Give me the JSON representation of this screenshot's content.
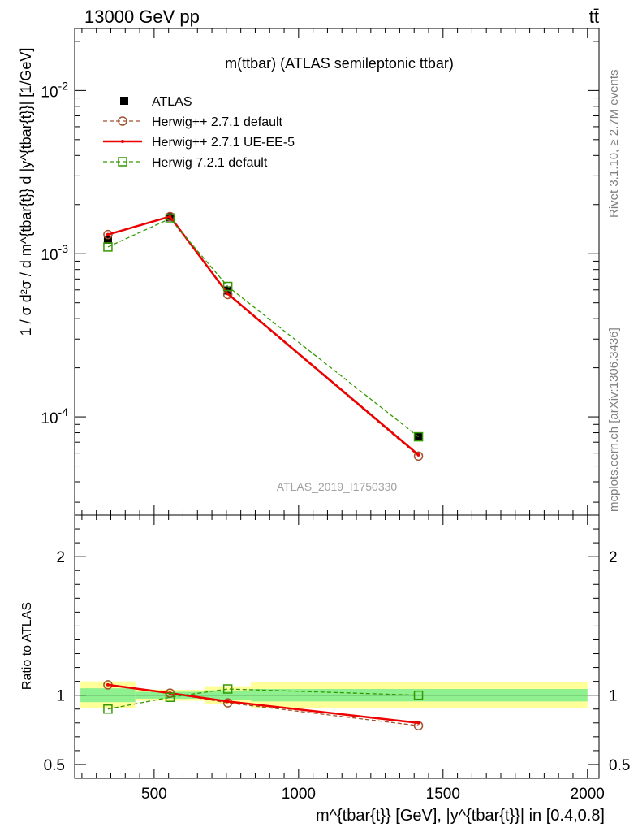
{
  "header": {
    "energy_label": "13000 GeV pp",
    "process_label": "tt̄"
  },
  "side_labels": {
    "rivet": "Rivet 3.1.10, ≥ 2.7M events",
    "mcplots": "mcplots.cern.ch [arXiv:1306.3436]"
  },
  "chart_data": [
    {
      "type": "line",
      "panel": "main",
      "title": "m(ttbar) (ATLAS semileptonic ttbar)",
      "ylabel": "1 / σ d²σ / d m^{tbar{t}} d |y^{tbar{t}}| [1/GeV]",
      "watermark": "ATLAS_2019_I1750330",
      "yscale": "log",
      "ylim": [
        2.5e-05,
        0.024
      ],
      "xlim": [
        225,
        2040
      ],
      "ytick_labels": [
        "10^-4",
        "10^-3",
        "10^-2"
      ],
      "legend_position": "top-left",
      "series": [
        {
          "name": "ATLAS",
          "style": "data-squares",
          "color": "#000000",
          "x": [
            340,
            555,
            755,
            1415
          ],
          "y": [
            0.00122,
            0.00167,
            0.000595,
            7.55e-05
          ],
          "xerr_low": [
            95,
            120,
            80,
            585
          ],
          "xerr_high": [
            95,
            120,
            80,
            585
          ]
        },
        {
          "name": "Herwig++ 2.7.1 default",
          "style": "dashed-circle",
          "color": "#a0522d",
          "x": [
            340,
            555,
            755,
            1415
          ],
          "y": [
            0.00131,
            0.00169,
            0.000562,
            5.75e-05
          ]
        },
        {
          "name": "Herwig++ 2.7.1 UE-EE-5",
          "style": "solid",
          "color": "#ee0000",
          "x": [
            340,
            555,
            755,
            1415
          ],
          "y": [
            0.00131,
            0.00169,
            0.000568,
            5.85e-05
          ]
        },
        {
          "name": "Herwig 7.2.1 default",
          "style": "dashed-square",
          "color": "#339900",
          "x": [
            340,
            555,
            755,
            1415
          ],
          "y": [
            0.0011,
            0.00164,
            0.00063,
            7.55e-05
          ]
        }
      ]
    },
    {
      "type": "line",
      "panel": "ratio",
      "ylabel": "Ratio to ATLAS",
      "xlabel": "m^{tbar{t}} [GeV], |y^{tbar{t}}| in [0.4,0.8]",
      "ylim": [
        0.4,
        2.3
      ],
      "xlim": [
        225,
        2040
      ],
      "xtick_labels": [
        "500",
        "1000",
        "1500",
        "2000"
      ],
      "ytick_labels": [
        "0.5",
        "1",
        "2"
      ],
      "bands": {
        "colors": {
          "inner": "#8ff08f",
          "outer": "#ffff99"
        },
        "bins": [
          {
            "xlo": 245,
            "xhi": 435,
            "inner": [
              0.95,
              1.05
            ],
            "outer": [
              0.91,
              1.1
            ]
          },
          {
            "xlo": 435,
            "xhi": 675,
            "inner": [
              0.975,
              1.025
            ],
            "outer": [
              0.96,
              1.04
            ]
          },
          {
            "xlo": 675,
            "xhi": 835,
            "inner": [
              0.965,
              1.035
            ],
            "outer": [
              0.935,
              1.065
            ]
          },
          {
            "xlo": 835,
            "xhi": 2000,
            "inner": [
              0.955,
              1.045
            ],
            "outer": [
              0.905,
              1.095
            ]
          }
        ]
      },
      "series": [
        {
          "name": "Herwig++ 2.7.1 default",
          "style": "dashed-circle",
          "color": "#a0522d",
          "x": [
            340,
            555,
            755,
            1415
          ],
          "y": [
            1.075,
            1.015,
            0.945,
            0.78
          ]
        },
        {
          "name": "Herwig++ 2.7.1 UE-EE-5",
          "style": "solid",
          "color": "#ee0000",
          "x": [
            340,
            555,
            755,
            1415
          ],
          "y": [
            1.075,
            1.015,
            0.955,
            0.8
          ]
        },
        {
          "name": "Herwig 7.2.1 default",
          "style": "dashed-square",
          "color": "#339900",
          "x": [
            340,
            555,
            755,
            1415
          ],
          "y": [
            0.9,
            0.985,
            1.045,
            1.0
          ]
        }
      ]
    }
  ]
}
